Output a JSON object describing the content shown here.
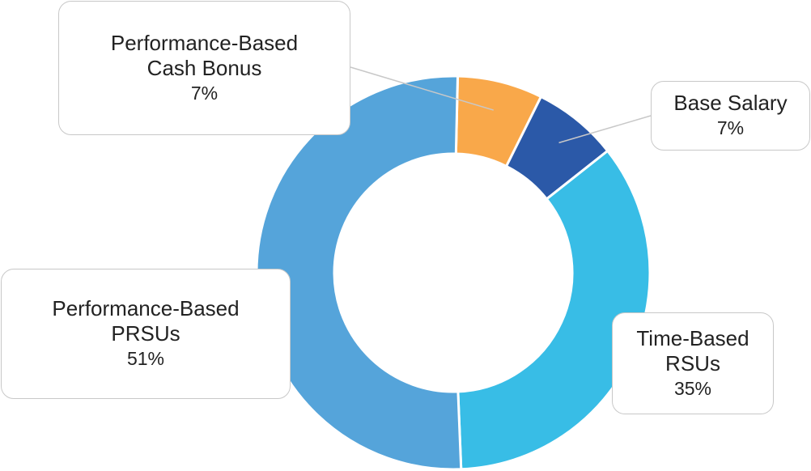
{
  "chart_data": {
    "type": "pie",
    "variant": "donut",
    "start_slice": "Performance-Based Cash Bonus",
    "slices": [
      {
        "key": "cash",
        "line1": "Performance-Based",
        "line2": "Cash Bonus",
        "value": 7,
        "label": "7%",
        "color": "#f9a84a"
      },
      {
        "key": "base",
        "line1": "Base Salary",
        "line2": "",
        "value": 7,
        "label": "7%",
        "color": "#2b59a8"
      },
      {
        "key": "rsu",
        "line1": "Time-Based",
        "line2": "RSUs",
        "value": 35,
        "label": "35%",
        "color": "#38bde6"
      },
      {
        "key": "prsu",
        "line1": "Performance-Based",
        "line2": "PRSUs",
        "value": 51,
        "label": "51%",
        "color": "#55a4da"
      }
    ],
    "leader_line_color": "#c8c8c8"
  }
}
